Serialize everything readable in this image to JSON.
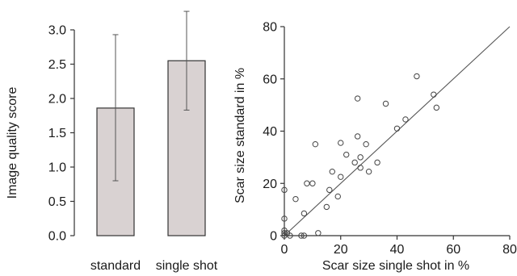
{
  "chart_data": [
    {
      "type": "bar",
      "categories": [
        "standard",
        "single shot"
      ],
      "values": [
        1.86,
        2.55
      ],
      "error_low": [
        0.8,
        1.83
      ],
      "error_high": [
        2.93,
        3.27
      ],
      "ylabel": "Image quality score",
      "xlabel": "",
      "ylim": [
        0,
        3.0
      ],
      "yticks": [
        "0.0",
        "0.5",
        "1.0",
        "1.5",
        "2.0",
        "2.5",
        "3.0"
      ],
      "grid": false,
      "colors": {
        "bar_fill": "#d9d2d2",
        "bar_stroke": "#333333",
        "axis": "#333333"
      }
    },
    {
      "type": "scatter",
      "xlabel": "Scar size single shot in %",
      "ylabel": "Scar size standard in %",
      "xlim": [
        0,
        80
      ],
      "ylim": [
        0,
        80
      ],
      "xticks": [
        "0",
        "20",
        "40",
        "60",
        "80"
      ],
      "yticks": [
        "0",
        "20",
        "40",
        "60",
        "80"
      ],
      "grid": false,
      "reference_line": {
        "from": [
          0,
          0
        ],
        "to": [
          80,
          80
        ]
      },
      "points": [
        {
          "x": 0,
          "y": 0
        },
        {
          "x": 0,
          "y": 1
        },
        {
          "x": 0,
          "y": 2
        },
        {
          "x": 0,
          "y": 6.5
        },
        {
          "x": 0,
          "y": 17.5
        },
        {
          "x": 1,
          "y": 1
        },
        {
          "x": 2,
          "y": 0
        },
        {
          "x": 4,
          "y": 14
        },
        {
          "x": 6,
          "y": 0
        },
        {
          "x": 7,
          "y": 0
        },
        {
          "x": 7,
          "y": 8.5
        },
        {
          "x": 8,
          "y": 20
        },
        {
          "x": 10,
          "y": 20
        },
        {
          "x": 11,
          "y": 35
        },
        {
          "x": 12,
          "y": 1
        },
        {
          "x": 15,
          "y": 11
        },
        {
          "x": 16,
          "y": 17.5
        },
        {
          "x": 17,
          "y": 24.5
        },
        {
          "x": 19,
          "y": 15
        },
        {
          "x": 20,
          "y": 22.5
        },
        {
          "x": 20,
          "y": 35.5
        },
        {
          "x": 22,
          "y": 31
        },
        {
          "x": 25,
          "y": 28
        },
        {
          "x": 26,
          "y": 52.5
        },
        {
          "x": 26,
          "y": 38
        },
        {
          "x": 27,
          "y": 30
        },
        {
          "x": 27,
          "y": 26
        },
        {
          "x": 29,
          "y": 35
        },
        {
          "x": 30,
          "y": 24.5
        },
        {
          "x": 33,
          "y": 28
        },
        {
          "x": 36,
          "y": 50.5
        },
        {
          "x": 40,
          "y": 41
        },
        {
          "x": 43,
          "y": 44.5
        },
        {
          "x": 47,
          "y": 61
        },
        {
          "x": 53,
          "y": 54
        },
        {
          "x": 54,
          "y": 49
        }
      ],
      "colors": {
        "marker_stroke": "#444444",
        "line": "#555555",
        "axis": "#333333"
      }
    }
  ]
}
